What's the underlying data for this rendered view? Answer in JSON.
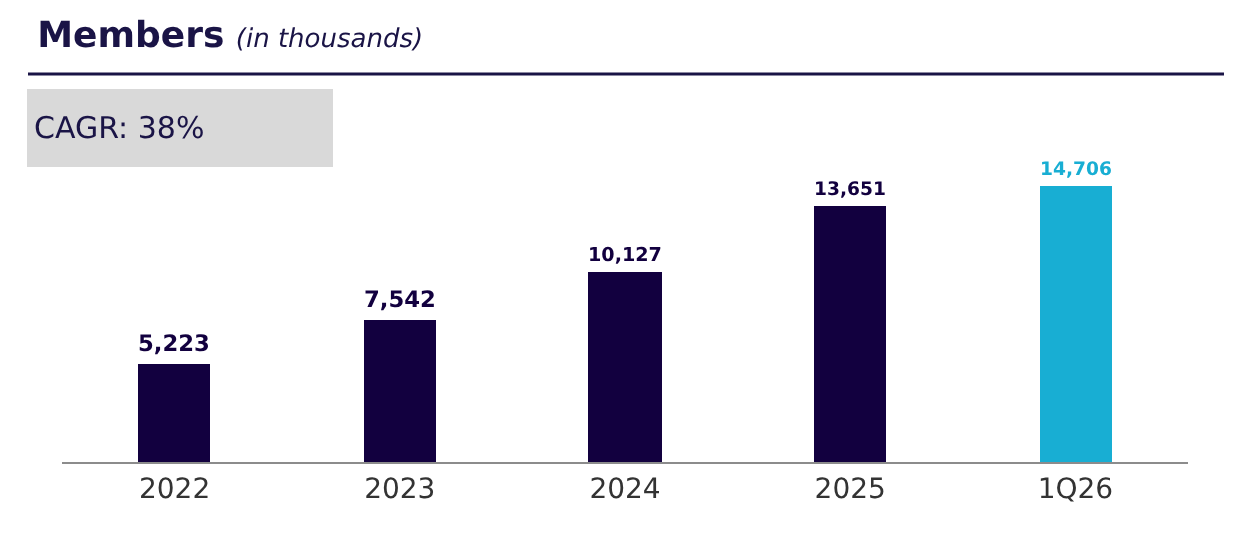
{
  "chart_data": {
    "type": "bar",
    "title": "Members",
    "subtitle": "(in thousands)",
    "annotations": [
      "CAGR: 38%"
    ],
    "categories": [
      "2022",
      "2023",
      "2024",
      "2025",
      "1Q26"
    ],
    "values": [
      5223,
      7542,
      10127,
      13651,
      14706
    ],
    "colors": [
      "#12003f",
      "#12003f",
      "#12003f",
      "#12003f",
      "#18aed3"
    ],
    "value_labels": [
      "5,223",
      "7,542",
      "10,127",
      "13,651",
      "14,706"
    ],
    "legend": false,
    "tick_labels": "x"
  }
}
